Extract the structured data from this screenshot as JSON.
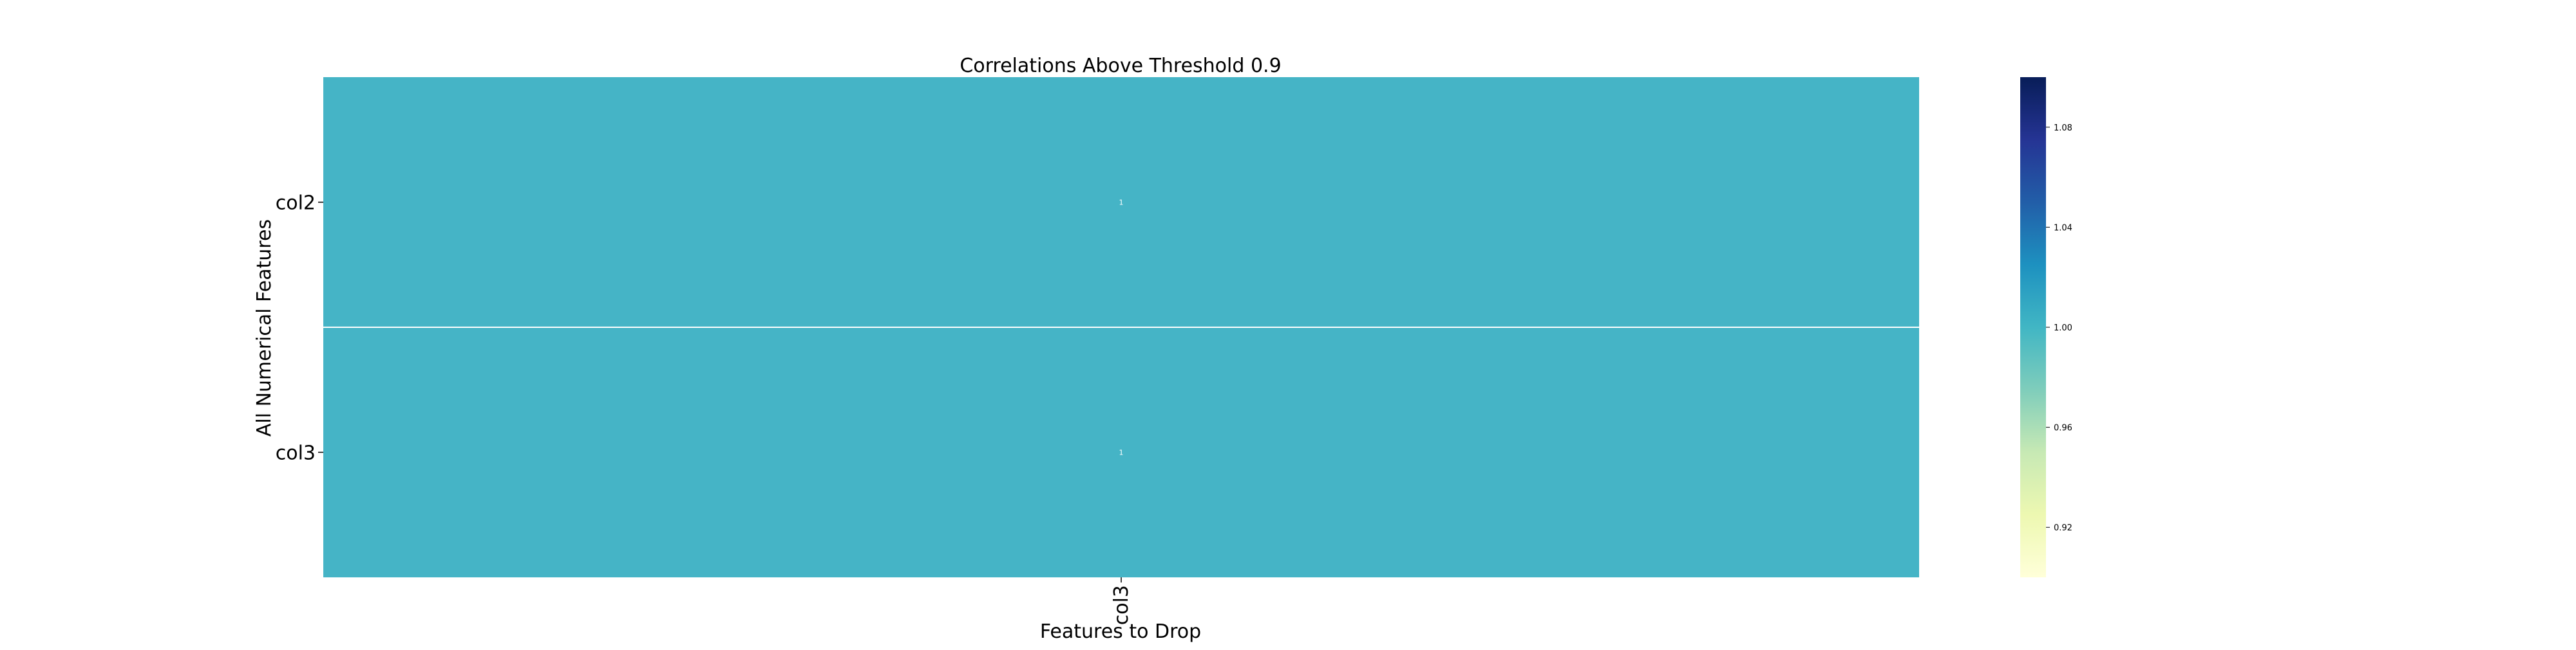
{
  "chart_data": {
    "type": "heatmap",
    "title": "Correlations Above Threshold 0.9",
    "xlabel": "Features to Drop",
    "ylabel": "All Numerical Features",
    "x_categories": [
      "col3"
    ],
    "y_categories": [
      "col2",
      "col3"
    ],
    "values": [
      [
        1
      ],
      [
        1
      ]
    ],
    "annotations": [
      [
        "1"
      ],
      [
        "1"
      ]
    ],
    "colorbar": {
      "colormap": "YlGnBu",
      "range": [
        0.9,
        1.1
      ],
      "ticks": [
        0.92,
        0.96,
        1.0,
        1.04,
        1.08
      ],
      "tick_labels": [
        "0.92",
        "0.96",
        "1.00",
        "1.04",
        "1.08"
      ]
    },
    "colors": {
      "cell_color": "#45b4c6",
      "cell_divider": "#ffffff",
      "annotation_text": "#ffffff"
    }
  }
}
